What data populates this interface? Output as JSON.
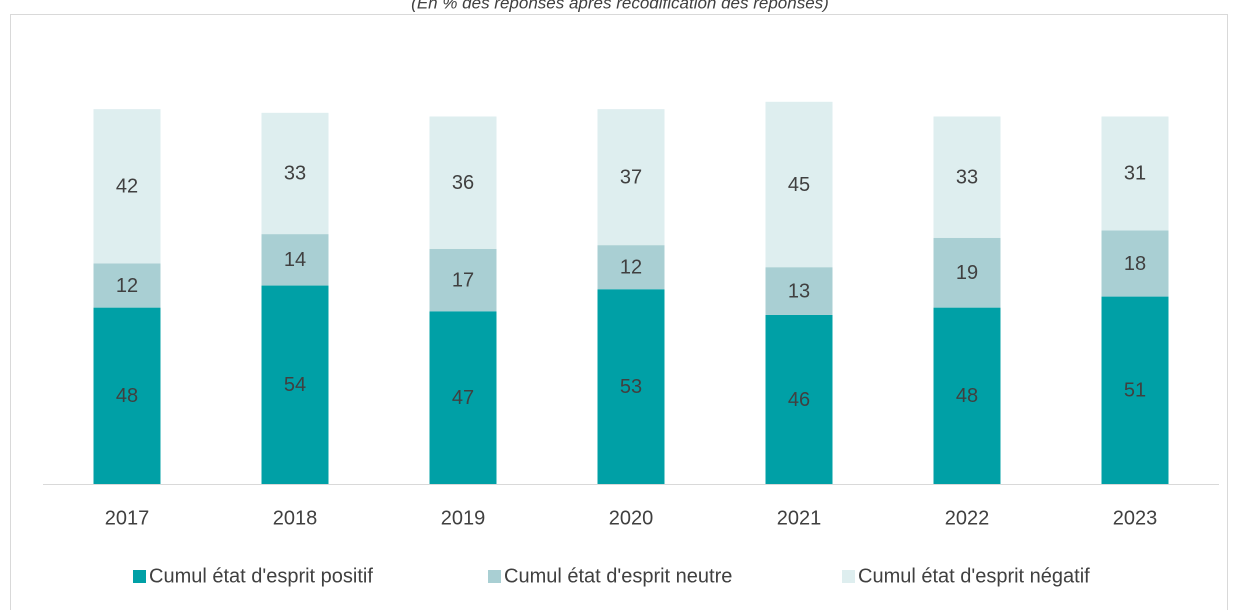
{
  "chart_data": {
    "type": "stacked_bar",
    "subtitle": "(En % des réponses après recodification des réponses)",
    "categories": [
      "2017",
      "2018",
      "2019",
      "2020",
      "2021",
      "2022",
      "2023"
    ],
    "series": [
      {
        "name": "Cumul état d'esprit positif",
        "color": "#00a0a6",
        "values": [
          48,
          54,
          47,
          53,
          46,
          48,
          51
        ]
      },
      {
        "name": "Cumul état d'esprit neutre",
        "color": "#a9cfd3",
        "values": [
          12,
          14,
          17,
          12,
          13,
          19,
          18
        ]
      },
      {
        "name": "Cumul état d'esprit négatif",
        "color": "#deeeef",
        "values": [
          42,
          33,
          36,
          37,
          45,
          33,
          31
        ]
      }
    ],
    "ylim": [
      0,
      120
    ],
    "legend": "bottom"
  }
}
